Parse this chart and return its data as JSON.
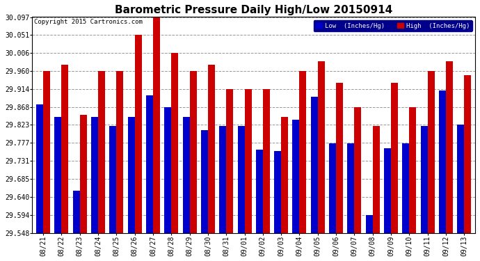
{
  "title": "Barometric Pressure Daily High/Low 20150914",
  "copyright": "Copyright 2015 Cartronics.com",
  "legend_low": "Low  (Inches/Hg)",
  "legend_high": "High  (Inches/Hg)",
  "categories": [
    "08/21",
    "08/22",
    "08/23",
    "08/24",
    "08/25",
    "08/26",
    "08/27",
    "08/28",
    "08/29",
    "08/30",
    "08/31",
    "09/01",
    "09/02",
    "09/03",
    "09/04",
    "09/05",
    "09/06",
    "09/07",
    "09/08",
    "09/09",
    "09/10",
    "09/11",
    "09/12",
    "09/13"
  ],
  "low_values": [
    29.875,
    29.843,
    29.655,
    29.843,
    29.82,
    29.843,
    29.898,
    29.868,
    29.843,
    29.81,
    29.82,
    29.82,
    29.76,
    29.756,
    29.836,
    29.895,
    29.775,
    29.775,
    29.593,
    29.763,
    29.775,
    29.82,
    29.91,
    29.823
  ],
  "high_values": [
    29.96,
    29.975,
    29.848,
    29.96,
    29.96,
    30.051,
    30.097,
    30.006,
    29.96,
    29.975,
    29.914,
    29.914,
    29.914,
    29.843,
    29.96,
    29.985,
    29.93,
    29.868,
    29.82,
    29.93,
    29.868,
    29.96,
    29.985,
    29.95
  ],
  "ylim_min": 29.548,
  "ylim_max": 30.097,
  "yticks": [
    29.548,
    29.594,
    29.64,
    29.685,
    29.731,
    29.777,
    29.823,
    29.868,
    29.914,
    29.96,
    30.006,
    30.051,
    30.097
  ],
  "bar_width": 0.38,
  "low_color": "#0000cc",
  "high_color": "#cc0000",
  "bg_color": "#ffffff",
  "grid_color": "#999999",
  "title_fontsize": 11,
  "tick_fontsize": 7,
  "copyright_fontsize": 6.5
}
